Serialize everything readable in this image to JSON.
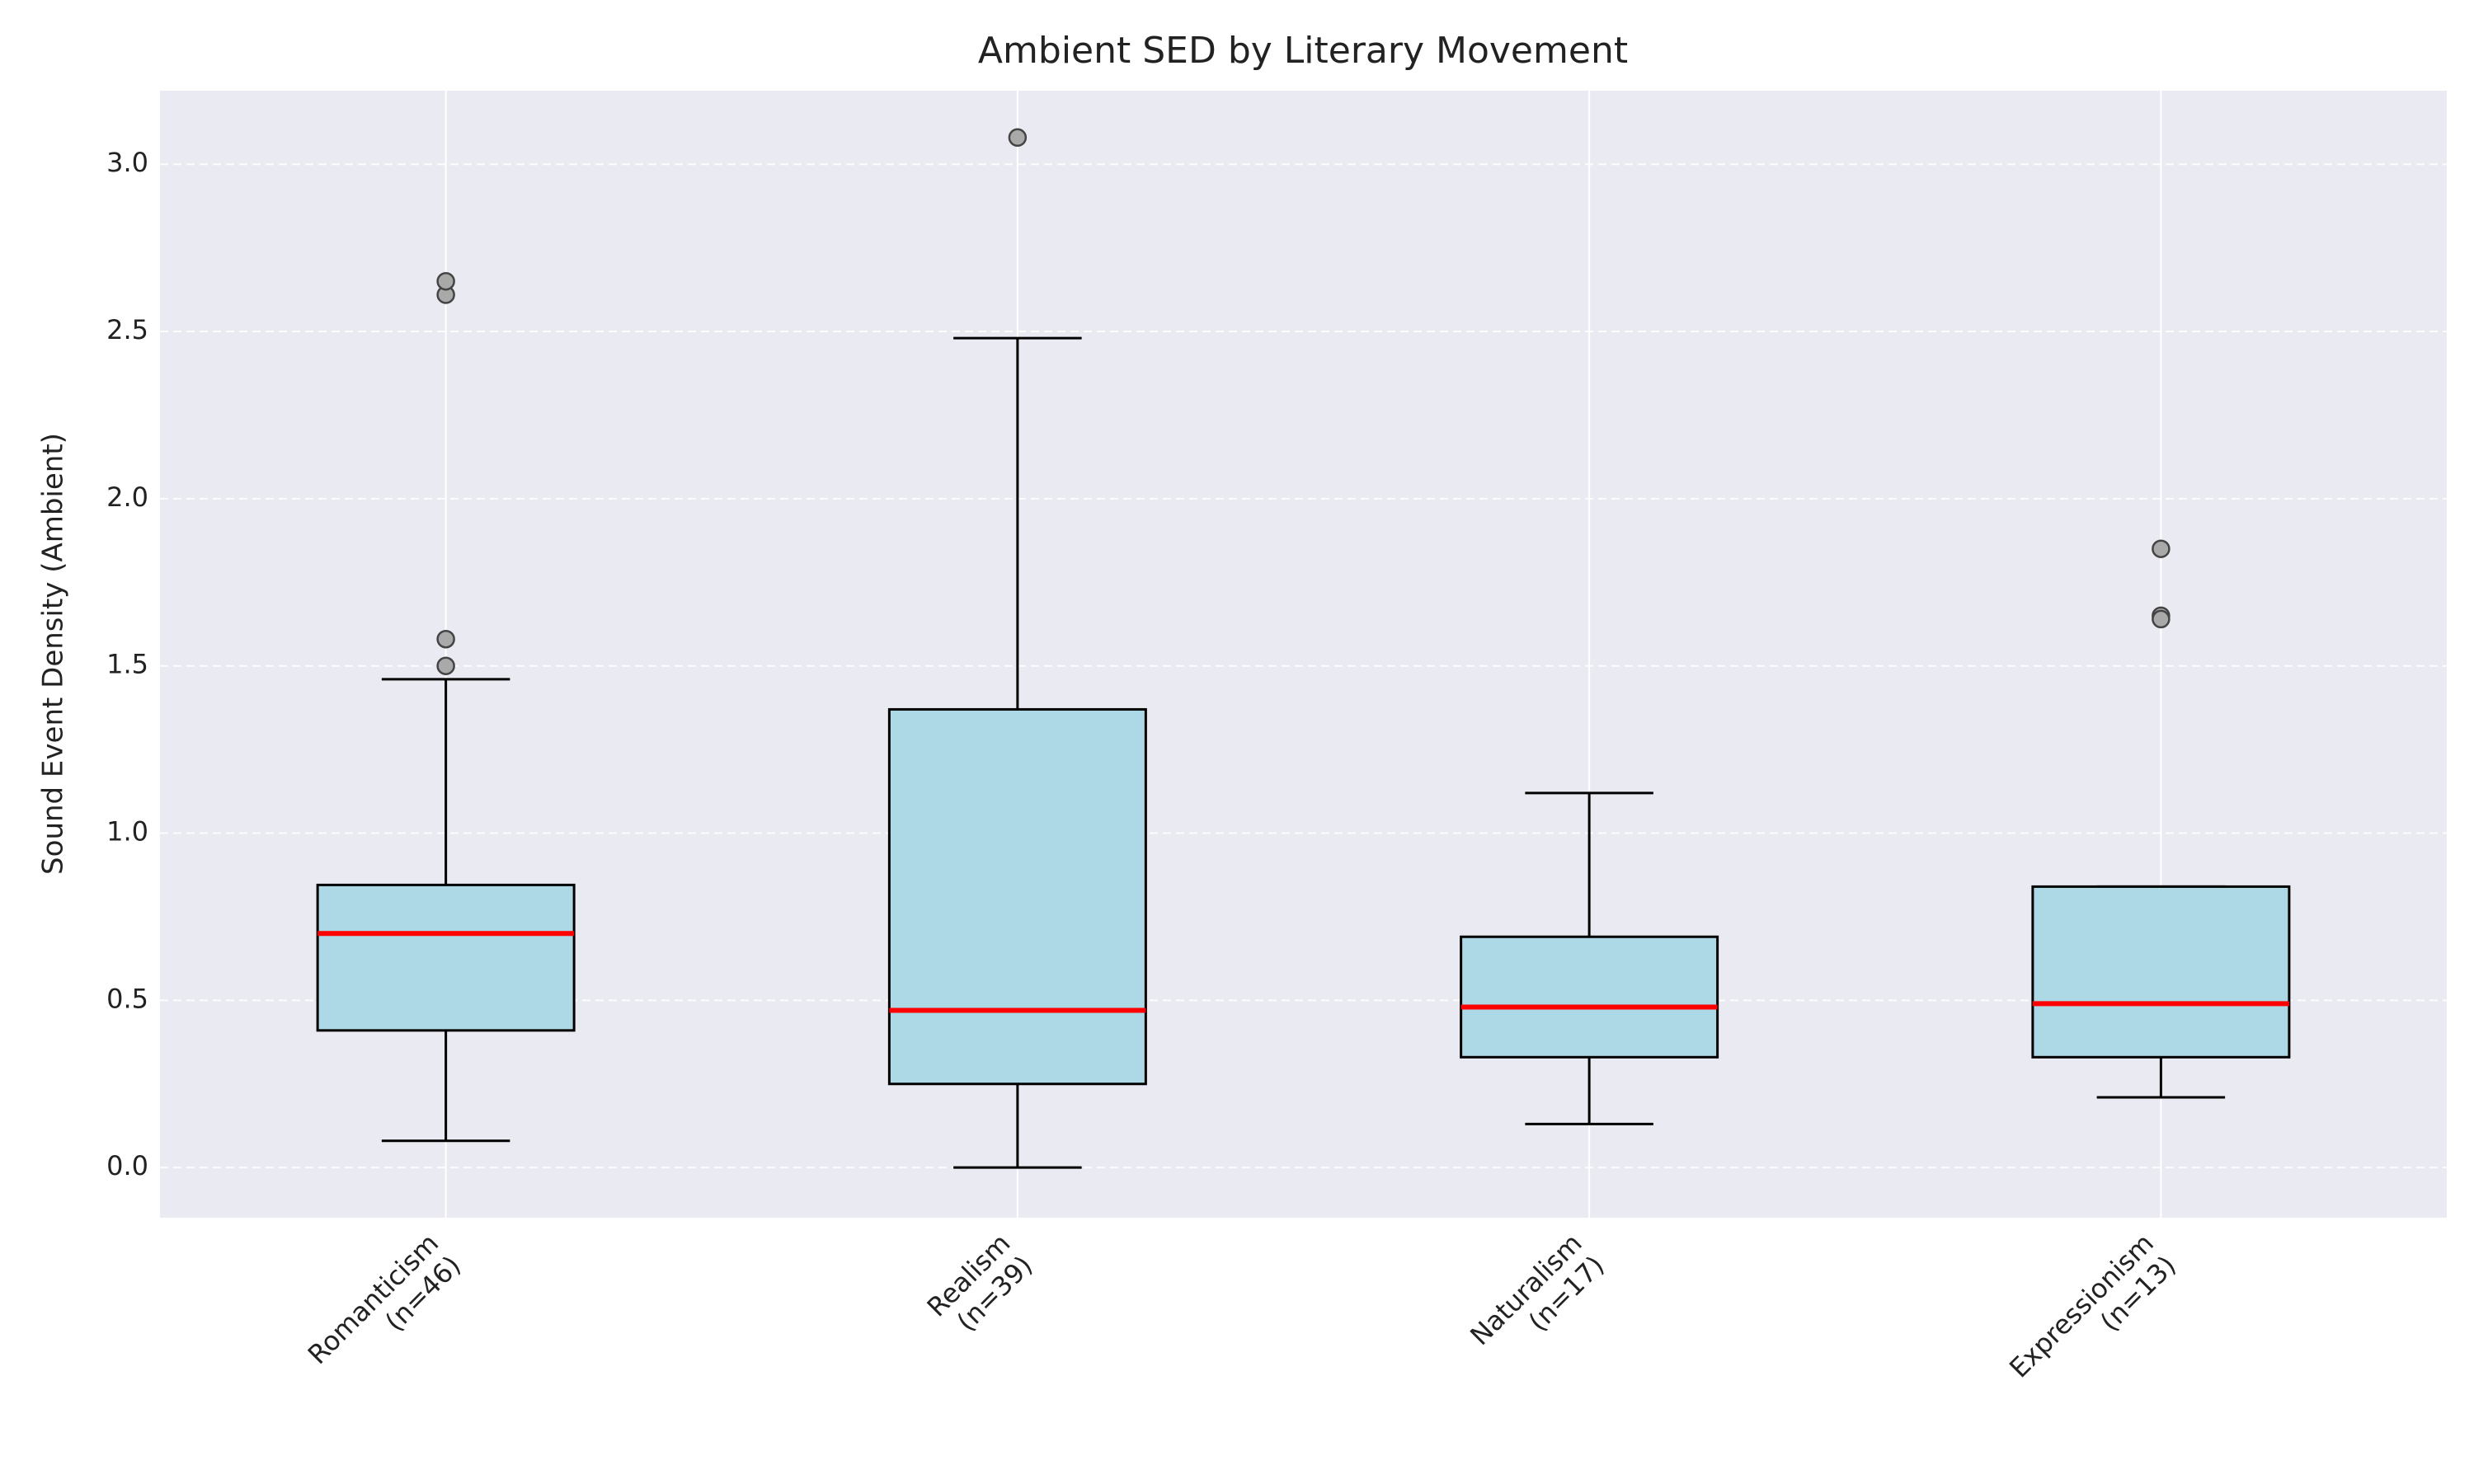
{
  "chart_data": {
    "type": "box",
    "title": "Ambient SED by Literary Movement",
    "y_label": "Sound Event Density (Ambient)",
    "categories": [
      "Romanticism\n(n=46)",
      "Realism\n(n=39)",
      "Naturalism\n(n=17)",
      "Expressionism\n(n=13)"
    ],
    "boxes": [
      {
        "low": 0.08,
        "q1": 0.41,
        "median": 0.7,
        "q3": 0.845,
        "high": 1.46,
        "outliers": [
          1.58,
          1.5,
          2.61,
          2.65
        ]
      },
      {
        "low": 0.0,
        "q1": 0.25,
        "median": 0.47,
        "q3": 1.37,
        "high": 2.48,
        "outliers": [
          3.08
        ]
      },
      {
        "low": 0.13,
        "q1": 0.33,
        "median": 0.48,
        "q3": 0.69,
        "high": 1.12,
        "outliers": []
      },
      {
        "low": 0.21,
        "q1": 0.33,
        "median": 0.49,
        "q3": 0.84,
        "high": 0.84,
        "outliers": [
          1.85,
          1.65,
          1.64
        ]
      }
    ],
    "color": "#add8e6",
    "median_color": "#ff0000",
    "outlier_color": "#a9a9a9",
    "ylim": [
      -0.15,
      3.22
    ],
    "yticks": [
      {
        "value": 0,
        "label": "0.0"
      },
      0.5,
      {
        "value": 1,
        "label": "1.0"
      },
      1.5,
      {
        "value": 2,
        "label": "2.0"
      },
      2.5,
      {
        "value": 3,
        "label": "3.0"
      }
    ],
    "grid": true
  }
}
